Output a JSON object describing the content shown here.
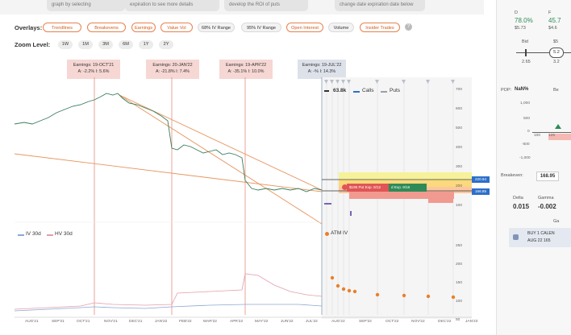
{
  "top_stubs": [
    "graph by selecting",
    "expiration to see more details",
    "develop the ROI of puts",
    "change date expiration date below"
  ],
  "overlays": {
    "label": "Overlays:",
    "items": [
      {
        "label": "Trendlines",
        "active": true
      },
      {
        "label": "Breakevens",
        "active": true
      },
      {
        "label": "Earnings",
        "active": true
      },
      {
        "label": "Value Vol",
        "active": true
      },
      {
        "label": "68% IV Range",
        "active": false
      },
      {
        "label": "95% IV Range",
        "active": false
      },
      {
        "label": "Open Interest",
        "active": true
      },
      {
        "label": "Volume",
        "active": false
      },
      {
        "label": "Insider Trades",
        "active": true
      }
    ]
  },
  "zoom": {
    "label": "Zoom Level:",
    "levels": [
      "1W",
      "1M",
      "3M",
      "6M",
      "1Y",
      "2Y"
    ]
  },
  "earnings": [
    {
      "title": "Earnings: 19-OCT'21",
      "detail": "A: -2.2%   I: 5.6%"
    },
    {
      "title": "Earnings: 20-JAN'22",
      "detail": "A: -21.8%   I: 7.4%"
    },
    {
      "title": "Earnings: 19-APR'22",
      "detail": "A: -35.1%   I: 10.0%"
    },
    {
      "title": "Earnings: 19-JUL'22",
      "detail": "A: -%   I: 14.3%"
    }
  ],
  "price_axis": [
    "700",
    "600",
    "500",
    "400",
    "300",
    "200",
    "100"
  ],
  "price_tags": {
    "upper": "220.94",
    "lower": "166.85"
  },
  "legend": {
    "volume": "63.8k",
    "calls": "Calls",
    "puts": "Puts"
  },
  "trade_labels": {
    "put": "$195 Put Exp. 8/12",
    "call": "d Exp. 9/16"
  },
  "iv_legend": {
    "iv30": "IV 30d",
    "hv30": "HV 30d",
    "atm": "ATM IV"
  },
  "iv_axis": [
    "250",
    "200",
    "150",
    "100",
    "50"
  ],
  "months": [
    "AUG'21",
    "SEP'21",
    "OCT'21",
    "NOV'21",
    "DEC'21",
    "JAN'22",
    "FEB'22",
    "MAR'22",
    "APR'22",
    "MAY'22",
    "JUN'22",
    "JUL'22",
    "AUG'22",
    "SEP'22",
    "OCT'22",
    "NOV'22",
    "DEC'22",
    "JAN'23"
  ],
  "right_panel": {
    "d_label": "D",
    "d_value": "78.0%",
    "d_price": "$5.73",
    "f_label": "F",
    "f_value": "45.7",
    "f_price": "$4.6",
    "bid_label": "Bid",
    "ask_label": "$5",
    "slider_val": "5.2",
    "bid_low": "2.65",
    "bid_high": "3.2",
    "pop_label": "POP:",
    "pop_value": "NaN%",
    "be_short": "Be",
    "mini_axis": [
      "1,000",
      "500",
      "0",
      "-500",
      "-1,000"
    ],
    "mini_bars": [
      "100",
      "125"
    ],
    "breakeven_label": "Breakeven:",
    "breakeven_value": "168.95",
    "delta_label": "Delta",
    "delta_value": "0.015",
    "gamma_label": "Gamma",
    "gamma_value": "-0.002",
    "extra_label": "Ga",
    "pos_line1": "BUY 1 CALEN",
    "pos_line2": "AUG 22 165"
  },
  "colors": {
    "accent": "#e8804d",
    "blue": "#2d6fc9",
    "green": "#2e8b57",
    "put_red": "#e05555"
  }
}
